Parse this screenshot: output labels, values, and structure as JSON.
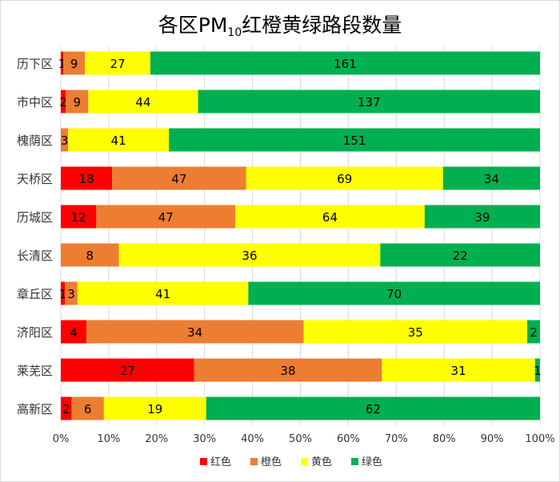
{
  "chart_data": {
    "type": "bar",
    "orientation": "horizontal",
    "stacked": "percent",
    "title": {
      "prefix": "各区PM",
      "subscript": "10",
      "suffix": "红橙黄绿路段数量"
    },
    "categories": [
      "历下区",
      "市中区",
      "槐荫区",
      "天桥区",
      "历城区",
      "长清区",
      "章丘区",
      "济阳区",
      "莱芜区",
      "高新区"
    ],
    "series": [
      {
        "name": "红色",
        "color": "#ff0000",
        "values": [
          1,
          2,
          0,
          18,
          12,
          0,
          1,
          4,
          27,
          2
        ]
      },
      {
        "name": "橙色",
        "color": "#ed7d31",
        "values": [
          9,
          9,
          3,
          47,
          47,
          8,
          3,
          34,
          38,
          6
        ]
      },
      {
        "name": "黄色",
        "color": "#ffff00",
        "values": [
          27,
          44,
          41,
          69,
          64,
          36,
          41,
          35,
          31,
          19
        ]
      },
      {
        "name": "绿色",
        "color": "#00b050",
        "values": [
          161,
          137,
          151,
          34,
          39,
          22,
          70,
          2,
          1,
          62
        ]
      }
    ],
    "xticks": [
      "0%",
      "10%",
      "20%",
      "30%",
      "40%",
      "50%",
      "60%",
      "70%",
      "80%",
      "90%",
      "100%"
    ],
    "xlim": [
      0,
      100
    ],
    "grid": true,
    "legend": "bottom"
  }
}
